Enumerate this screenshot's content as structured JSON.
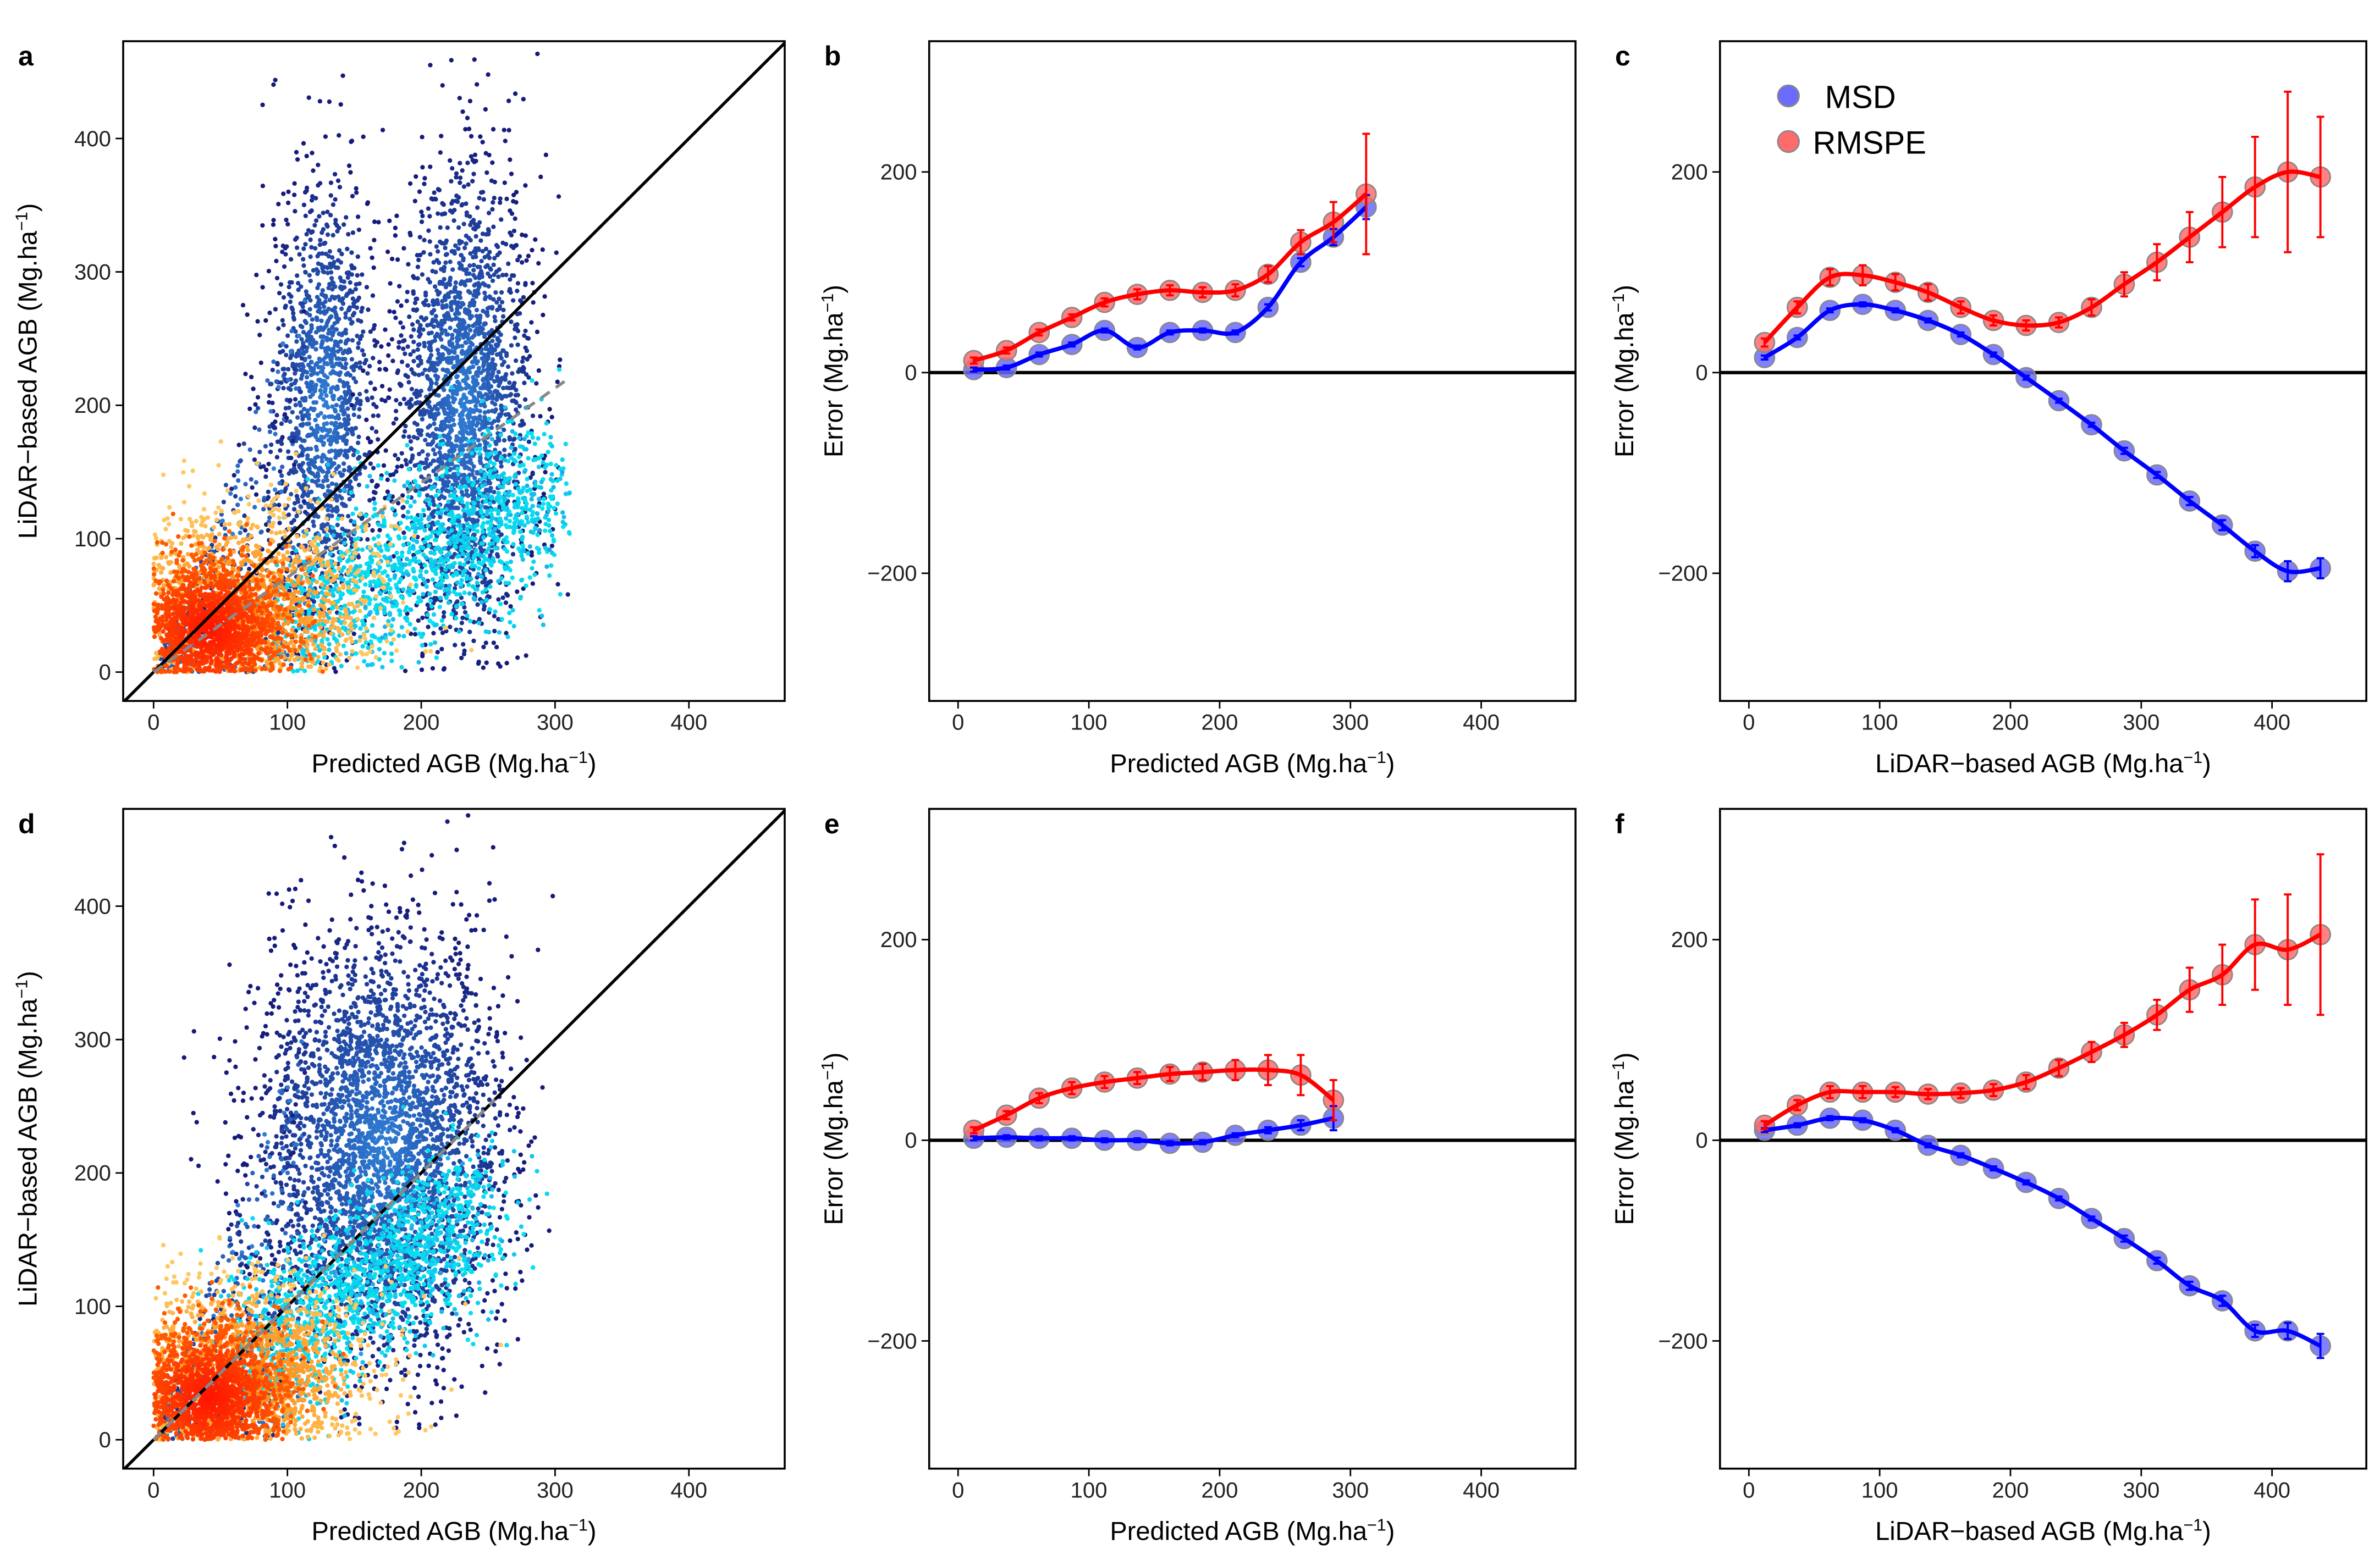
{
  "chart_data": [
    {
      "panel": "a",
      "type": "scatter",
      "xlabel": {
        "main": "Predicted AGB (Mg.ha",
        "sup": "−1",
        "end": ")"
      },
      "ylabel": {
        "main": "LiDAR−based AGB (Mg.ha",
        "sup": "−1",
        "end": ")"
      },
      "xlim": [
        -20,
        475
      ],
      "ylim": [
        -20,
        475
      ],
      "xticks": [
        0,
        100,
        200,
        300,
        400
      ],
      "yticks": [
        0,
        100,
        200,
        300,
        400
      ],
      "one_to_one_line": true,
      "regression_line": [
        [
          0,
          0
        ],
        [
          310,
          220
        ]
      ],
      "density_coloring": "blue-cyan-orange-red"
    },
    {
      "panel": "b",
      "type": "line",
      "xlabel": {
        "main": "Predicted AGB (Mg.ha",
        "sup": "−1",
        "end": ")"
      },
      "ylabel": {
        "main": "Error (Mg.ha",
        "sup": "−1",
        "end": ")"
      },
      "xlim": [
        -22,
        472
      ],
      "ylim": [
        -328,
        330
      ],
      "xticks": [
        0,
        100,
        200,
        300,
        400
      ],
      "yticks": [
        -200,
        0,
        200
      ],
      "hline": 0,
      "x": [
        12,
        37,
        62,
        87,
        112,
        137,
        162,
        187,
        212,
        237,
        262,
        287,
        312
      ],
      "series": [
        {
          "name": "MSD",
          "color": "#0000ff",
          "values": [
            3,
            5,
            18,
            28,
            42,
            25,
            40,
            42,
            40,
            65,
            110,
            135,
            165
          ],
          "err": [
            2,
            2,
            2,
            2,
            2,
            2,
            2,
            2,
            2,
            3,
            4,
            8,
            12
          ]
        },
        {
          "name": "RMSPE",
          "color": "#ff0000",
          "values": [
            12,
            22,
            40,
            55,
            70,
            78,
            82,
            80,
            82,
            98,
            130,
            150,
            178
          ],
          "err": [
            3,
            3,
            3,
            3,
            4,
            5,
            5,
            5,
            6,
            8,
            12,
            20,
            60
          ]
        }
      ]
    },
    {
      "panel": "c",
      "type": "line",
      "xlabel": {
        "main": "LiDAR−based AGB (Mg.ha",
        "sup": "−1",
        "end": ")"
      },
      "ylabel": {
        "main": "Error (Mg.ha",
        "sup": "−1",
        "end": ")"
      },
      "xlim": [
        -22,
        472
      ],
      "ylim": [
        -328,
        330
      ],
      "xticks": [
        0,
        100,
        200,
        300,
        400
      ],
      "yticks": [
        -200,
        0,
        200
      ],
      "hline": 0,
      "legend": {
        "position": "top-left",
        "entries": [
          "MSD",
          "RMSPE"
        ]
      },
      "x": [
        12,
        37,
        62,
        87,
        112,
        137,
        162,
        187,
        212,
        237,
        262,
        287,
        312,
        337,
        362,
        387,
        412,
        437
      ],
      "series": [
        {
          "name": "MSD",
          "color": "#0000ff",
          "values": [
            15,
            35,
            62,
            68,
            62,
            52,
            38,
            18,
            -5,
            -28,
            -52,
            -78,
            -102,
            -128,
            -152,
            -178,
            -198,
            -195
          ],
          "err": [
            2,
            2,
            2,
            2,
            2,
            2,
            2,
            2,
            2,
            2,
            2,
            3,
            3,
            4,
            5,
            6,
            10,
            10
          ]
        },
        {
          "name": "RMSPE",
          "color": "#ff0000",
          "values": [
            30,
            65,
            95,
            97,
            90,
            80,
            65,
            52,
            47,
            50,
            65,
            88,
            110,
            135,
            160,
            185,
            200,
            195
          ],
          "err": [
            4,
            6,
            8,
            10,
            8,
            8,
            6,
            5,
            5,
            5,
            8,
            12,
            18,
            25,
            35,
            50,
            80,
            60
          ]
        }
      ]
    },
    {
      "panel": "d",
      "type": "scatter",
      "xlabel": {
        "main": "Predicted AGB (Mg.ha",
        "sup": "−1",
        "end": ")"
      },
      "ylabel": {
        "main": "LiDAR−based AGB (Mg.ha",
        "sup": "−1",
        "end": ")"
      },
      "xlim": [
        -20,
        475
      ],
      "ylim": [
        -20,
        475
      ],
      "xticks": [
        0,
        100,
        200,
        300,
        400
      ],
      "yticks": [
        0,
        100,
        200,
        300,
        400
      ],
      "one_to_one_line": true,
      "regression_line": [
        [
          0,
          0
        ],
        [
          255,
          255
        ]
      ],
      "density_coloring": "blue-cyan-orange-red"
    },
    {
      "panel": "e",
      "type": "line",
      "xlabel": {
        "main": "Predicted AGB (Mg.ha",
        "sup": "−1",
        "end": ")"
      },
      "ylabel": {
        "main": "Error (Mg.ha",
        "sup": "−1",
        "end": ")"
      },
      "xlim": [
        -22,
        472
      ],
      "ylim": [
        -328,
        330
      ],
      "xticks": [
        0,
        100,
        200,
        300,
        400
      ],
      "yticks": [
        -200,
        0,
        200
      ],
      "hline": 0,
      "x": [
        12,
        37,
        62,
        87,
        112,
        137,
        162,
        187,
        212,
        237,
        262,
        287
      ],
      "series": [
        {
          "name": "MSD",
          "color": "#0000ff",
          "values": [
            2,
            3,
            2,
            2,
            0,
            0,
            -3,
            -2,
            5,
            10,
            15,
            22
          ],
          "err": [
            2,
            2,
            2,
            2,
            2,
            2,
            2,
            2,
            2,
            3,
            5,
            12
          ]
        },
        {
          "name": "RMSPE",
          "color": "#ff0000",
          "values": [
            10,
            25,
            42,
            52,
            58,
            62,
            66,
            68,
            70,
            70,
            65,
            40
          ],
          "err": [
            3,
            4,
            5,
            6,
            6,
            6,
            7,
            8,
            10,
            15,
            20,
            20
          ]
        }
      ]
    },
    {
      "panel": "f",
      "type": "line",
      "xlabel": {
        "main": "LiDAR−based AGB (Mg.ha",
        "sup": "−1",
        "end": ")"
      },
      "ylabel": {
        "main": "Error (Mg.ha",
        "sup": "−1",
        "end": ")"
      },
      "xlim": [
        -22,
        472
      ],
      "ylim": [
        -328,
        330
      ],
      "xticks": [
        0,
        100,
        200,
        300,
        400
      ],
      "yticks": [
        -200,
        0,
        200
      ],
      "hline": 0,
      "x": [
        12,
        37,
        62,
        87,
        112,
        137,
        162,
        187,
        212,
        237,
        262,
        287,
        312,
        337,
        362,
        387,
        412,
        437
      ],
      "series": [
        {
          "name": "MSD",
          "color": "#0000ff",
          "values": [
            10,
            15,
            22,
            20,
            10,
            -5,
            -15,
            -28,
            -42,
            -58,
            -78,
            -98,
            -120,
            -145,
            -160,
            -190,
            -190,
            -205
          ],
          "err": [
            2,
            2,
            2,
            2,
            2,
            2,
            2,
            2,
            2,
            2,
            2,
            3,
            3,
            4,
            5,
            6,
            8,
            12
          ]
        },
        {
          "name": "RMSPE",
          "color": "#ff0000",
          "values": [
            15,
            35,
            48,
            48,
            48,
            46,
            47,
            50,
            58,
            72,
            88,
            105,
            125,
            150,
            165,
            195,
            190,
            205
          ],
          "err": [
            4,
            5,
            6,
            6,
            5,
            5,
            5,
            6,
            7,
            8,
            10,
            12,
            15,
            22,
            30,
            45,
            55,
            80
          ]
        }
      ]
    }
  ]
}
